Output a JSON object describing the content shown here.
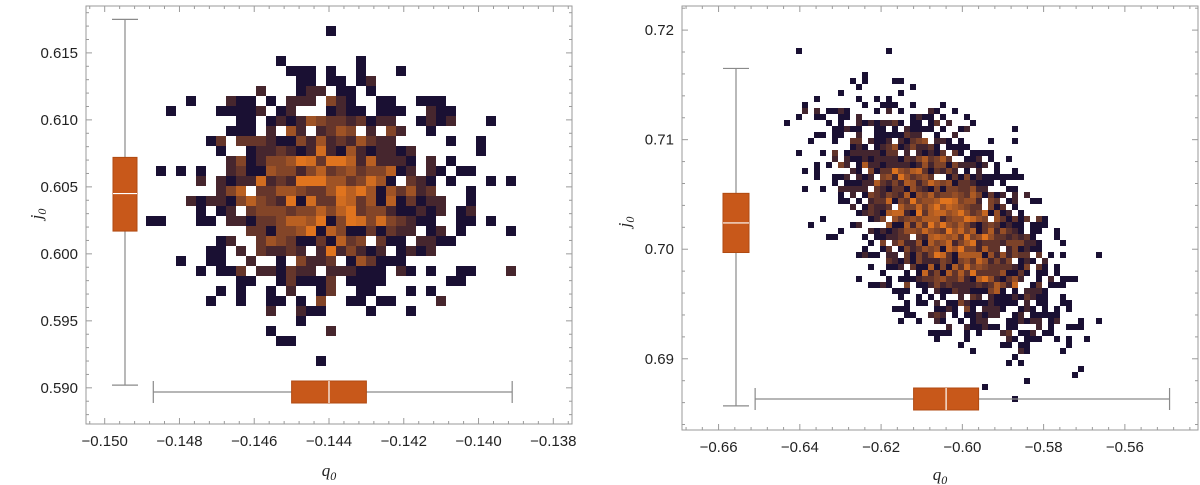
{
  "colors": {
    "box_fill": "#c8581a",
    "density_low": "#1a1033",
    "density_high": "#e0741e",
    "whisker": "#8a8a8a",
    "frame": "#9a9a9a"
  },
  "chart_data": [
    {
      "type": "heatmap",
      "title": "",
      "xlabel": "q",
      "xlabel_sub": "0",
      "ylabel": "j",
      "ylabel_sub": "0",
      "xlim": [
        -0.1505,
        -0.1375
      ],
      "ylim": [
        0.5873,
        0.6185
      ],
      "xticks": [
        -0.15,
        -0.148,
        -0.146,
        -0.144,
        -0.142,
        -0.14,
        -0.138
      ],
      "xtick_labels": [
        "−0.150",
        "−0.148",
        "−0.146",
        "−0.144",
        "−0.142",
        "−0.140",
        "−0.138"
      ],
      "yticks": [
        0.59,
        0.595,
        0.6,
        0.605,
        0.61,
        0.615
      ],
      "ytick_labels": [
        "0.590",
        "0.595",
        "0.600",
        "0.605",
        "0.610",
        "0.615"
      ],
      "grid": false,
      "distribution": {
        "mean_x": -0.144,
        "sd_x": 0.0016,
        "mean_y": 0.6044,
        "sd_y": 0.0039,
        "rho": 0.0
      },
      "boxplot_x": {
        "min": -0.1487,
        "q1": -0.145,
        "median": -0.144,
        "q3": -0.143,
        "max": -0.1391
      },
      "boxplot_y": {
        "min": 0.5902,
        "q1": 0.6017,
        "median": 0.6045,
        "q3": 0.6072,
        "max": 0.6175
      }
    },
    {
      "type": "heatmap",
      "title": "",
      "xlabel": "q",
      "xlabel_sub": "0",
      "ylabel": "j",
      "ylabel_sub": "0",
      "xlim": [
        -0.669,
        -0.542
      ],
      "ylim": [
        0.6835,
        0.7222
      ],
      "xticks": [
        -0.66,
        -0.64,
        -0.62,
        -0.6,
        -0.58,
        -0.56
      ],
      "xtick_labels": [
        "−0.66",
        "−0.64",
        "−0.62",
        "−0.60",
        "−0.58",
        "−0.56"
      ],
      "yticks": [
        0.69,
        0.7,
        0.71,
        0.72
      ],
      "ytick_labels": [
        "0.69",
        "0.70",
        "0.71",
        "0.72"
      ],
      "grid": false,
      "distribution": {
        "mean_x": -0.604,
        "sd_x": 0.012,
        "mean_y": 0.7024,
        "sd_y": 0.0047,
        "rho": -0.55
      },
      "boxplot_x": {
        "min": -0.651,
        "q1": -0.612,
        "median": -0.604,
        "q3": -0.596,
        "max": -0.549
      },
      "boxplot_y": {
        "min": 0.6857,
        "q1": 0.6997,
        "median": 0.7024,
        "q3": 0.7051,
        "max": 0.7165
      }
    }
  ]
}
